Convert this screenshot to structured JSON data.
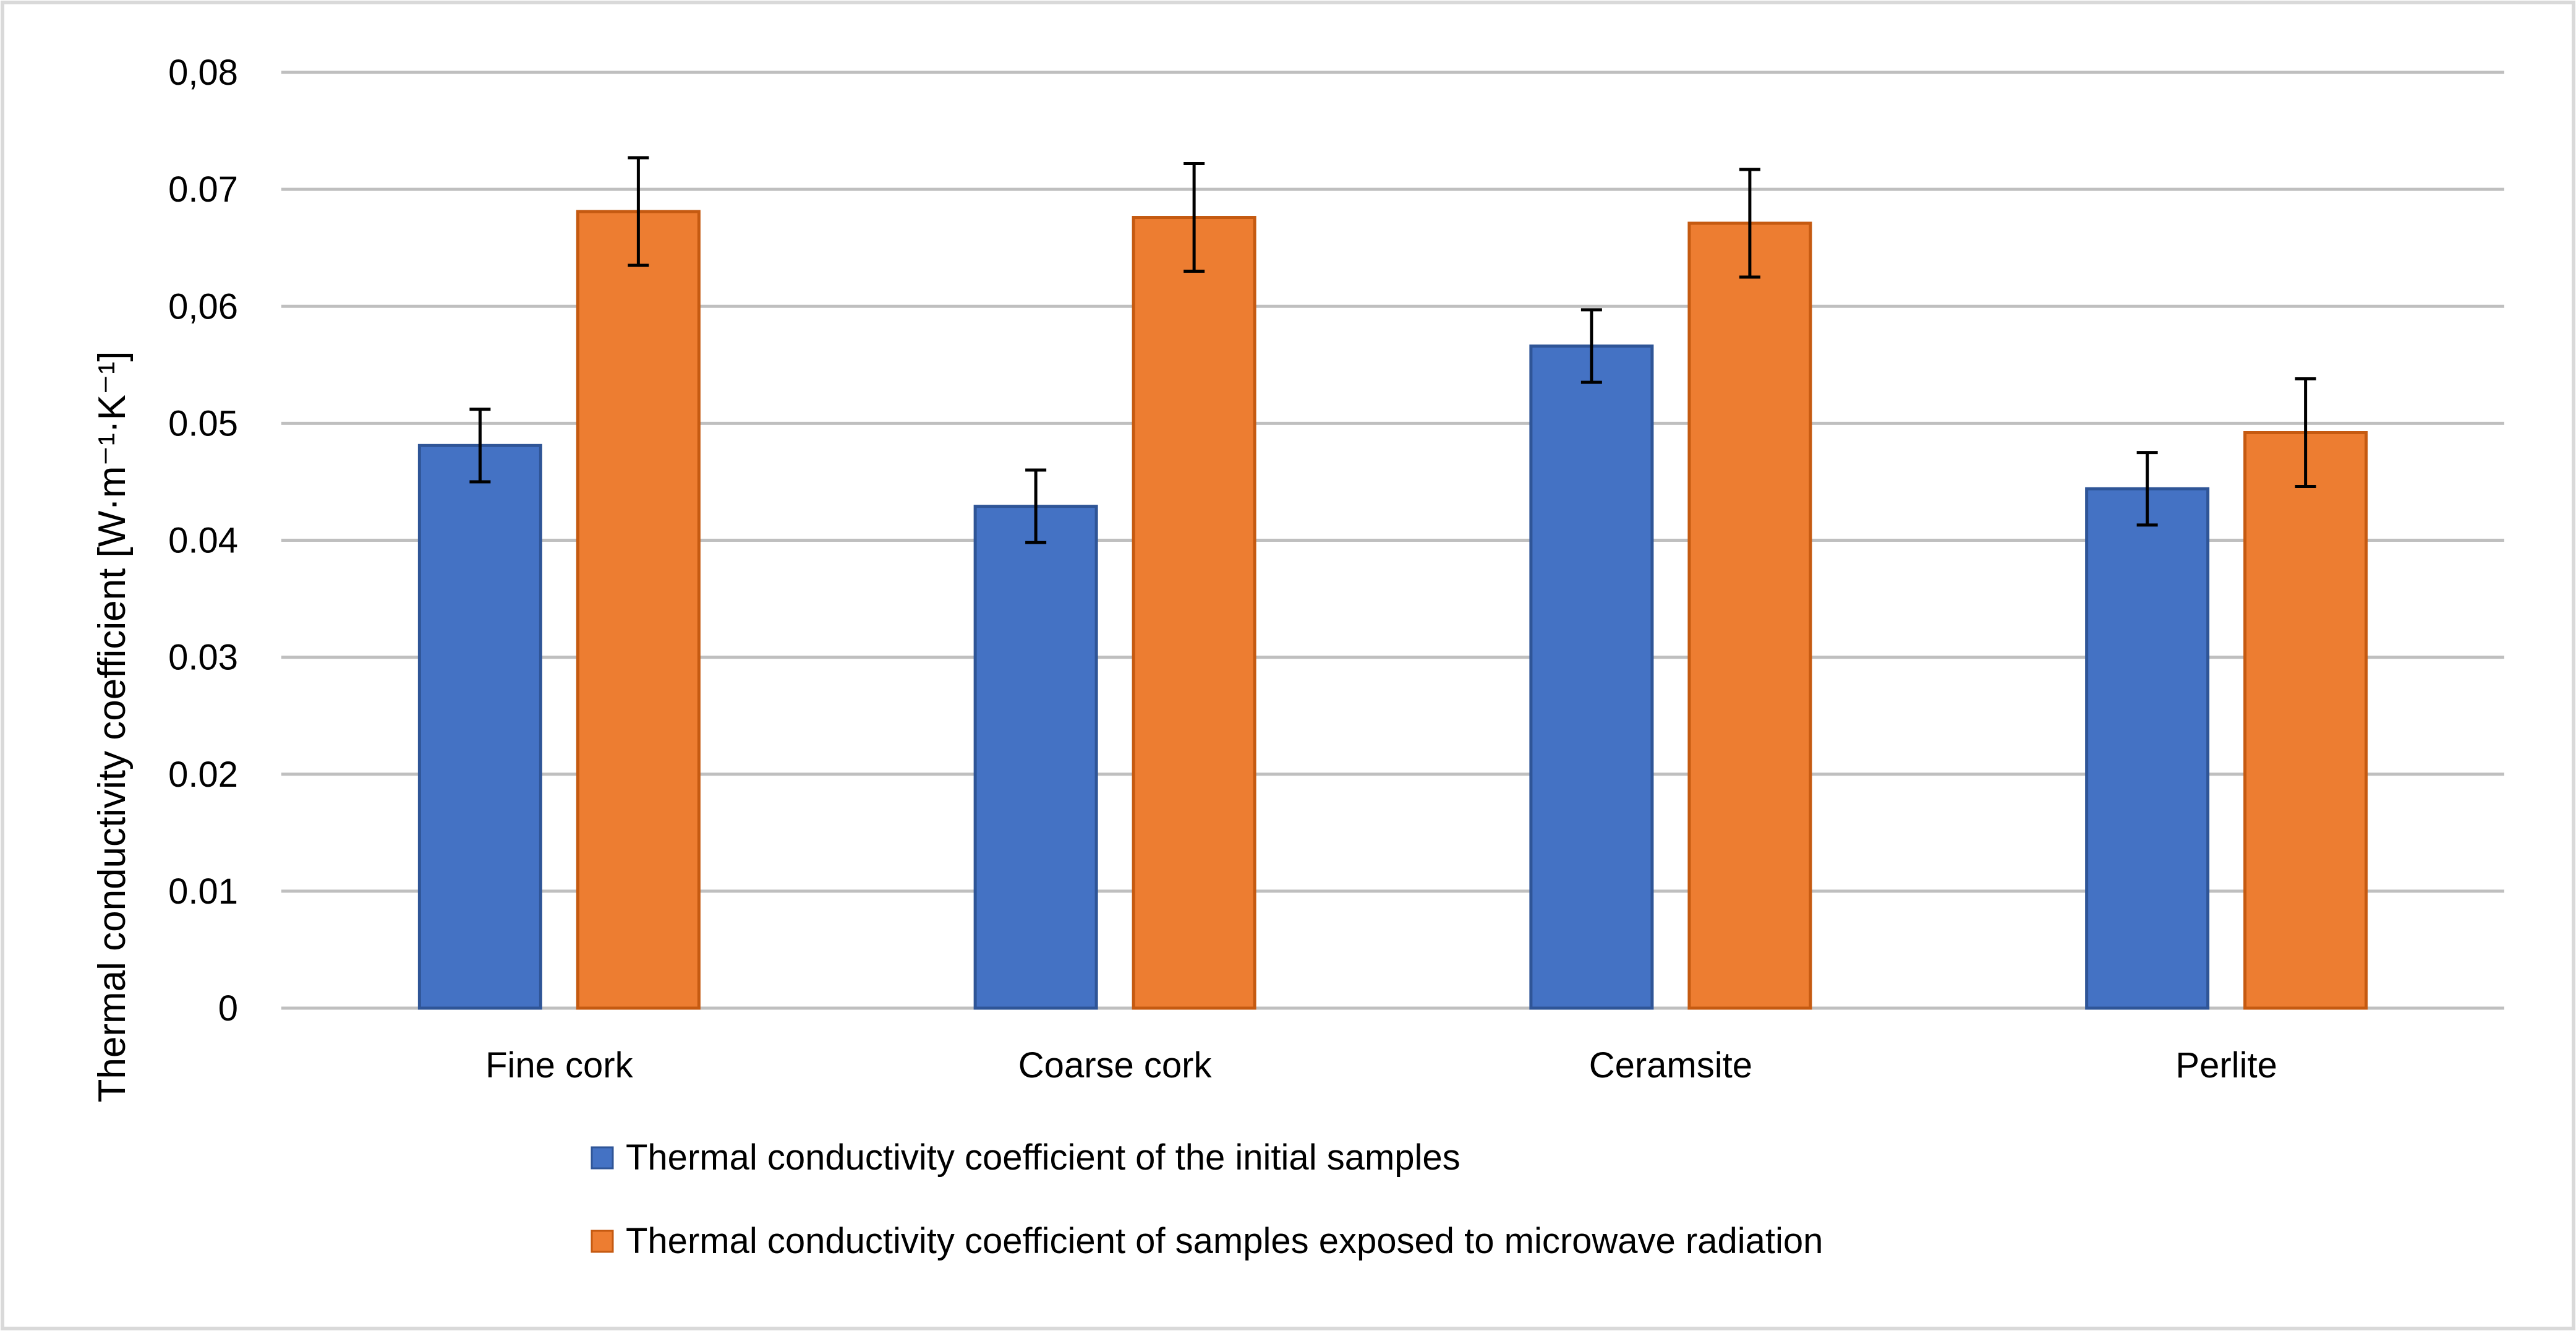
{
  "chart_data": {
    "type": "bar",
    "title": "",
    "xlabel": "",
    "ylabel": "Thermal conductivity coefficient [W·m⁻¹·K⁻¹]",
    "ylim": [
      0,
      0.08
    ],
    "yticks": [
      0,
      0.01,
      0.02,
      0.03,
      0.04,
      0.05,
      0.06,
      0.07,
      0.08
    ],
    "ytick_labels": [
      "0",
      "0.01",
      "0.02",
      "0.03",
      "0.04",
      "0.05",
      "0,06",
      "0.07",
      "0,08"
    ],
    "grid": true,
    "categories": [
      "Fine cork",
      "Coarse cork",
      "Ceramsite",
      "Perlite"
    ],
    "series": [
      {
        "name": "Thermal conductivity coefficient of the initial samples",
        "color": "#4472C4",
        "values": [
          0.0481,
          0.0429,
          0.0566,
          0.0444
        ],
        "errors": [
          0.0031,
          0.0031,
          0.0031,
          0.0031
        ]
      },
      {
        "name": "Thermal conductivity coefficient of samples exposed to microwave radiation",
        "color": "#ED7D31",
        "values": [
          0.0681,
          0.0676,
          0.0671,
          0.0492
        ],
        "errors": [
          0.0046,
          0.0046,
          0.0046,
          0.0046
        ]
      }
    ],
    "legend_position": "bottom-center"
  },
  "colors": {
    "grid": "#BFBFBF",
    "frame": "#D9D9D9",
    "error_bar": "#000000"
  }
}
